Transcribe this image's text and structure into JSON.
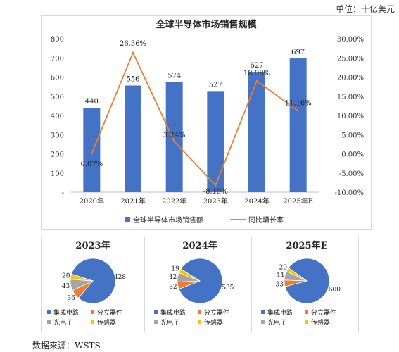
{
  "unit_label": "单位：十亿美元",
  "source_label": "数据来源：WSTS",
  "colors": {
    "bar": "#4472C4",
    "line": "#ED7D31",
    "ic": "#4472C4",
    "discrete": "#ED7D31",
    "opto": "#A5A5A5",
    "sensor": "#FFC000"
  },
  "chart_data": [
    {
      "type": "bar",
      "title": "全球半导体市场销售规模",
      "categories": [
        "2020年",
        "2021年",
        "2022年",
        "2023年",
        "2024年",
        "2025年E"
      ],
      "series": [
        {
          "name": "全球半导体市场销售额",
          "type": "bar",
          "axis": "left",
          "values": [
            440,
            556,
            574,
            527,
            627,
            697
          ],
          "labels": [
            "440",
            "556",
            "574",
            "527",
            "627",
            "697"
          ]
        },
        {
          "name": "同比增长率",
          "type": "line",
          "axis": "right",
          "values": [
            0.07,
            26.36,
            3.24,
            -8.19,
            18.98,
            11.16
          ],
          "labels": [
            "0.07%",
            "26.36%",
            "3.24%",
            "-8.19%",
            "18.98%",
            "11.16%"
          ]
        }
      ],
      "ylim": [
        0,
        800
      ],
      "y_ticks": [
        "-",
        "100",
        "200",
        "300",
        "400",
        "500",
        "600",
        "700",
        "800"
      ],
      "y2lim": [
        -10,
        30
      ],
      "y2_ticks": [
        "-10.00%",
        "-5.00%",
        "0.00%",
        "5.00%",
        "10.00%",
        "15.00%",
        "20.00%",
        "25.00%",
        "30.00%"
      ],
      "legend_position": "bottom",
      "grid": false
    },
    {
      "type": "pie",
      "title": "2023年",
      "categories": [
        "集成电路",
        "分立器件",
        "光电子",
        "传感器"
      ],
      "values": [
        428,
        36,
        43,
        20
      ],
      "labels": [
        "428",
        "36",
        "43",
        "20"
      ],
      "legend_position": "bottom"
    },
    {
      "type": "pie",
      "title": "2024年",
      "categories": [
        "集成电路",
        "分立器件",
        "光电子",
        "传感器"
      ],
      "values": [
        535,
        32,
        42,
        19
      ],
      "labels": [
        "535",
        "32",
        "42",
        "19"
      ],
      "legend_position": "bottom"
    },
    {
      "type": "pie",
      "title": "2025年E",
      "categories": [
        "集成电路",
        "分立器件",
        "光电子",
        "传感器"
      ],
      "values": [
        600,
        33,
        44,
        20
      ],
      "labels": [
        "600",
        "33",
        "44",
        "20"
      ],
      "legend_position": "bottom"
    }
  ]
}
